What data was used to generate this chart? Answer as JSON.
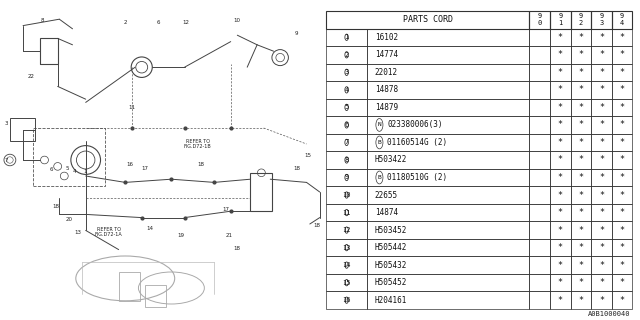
{
  "fig_id": "A0B1000040",
  "table": {
    "header_col1": "PARTS CORD",
    "header_years": [
      "9\n0",
      "9\n1",
      "9\n2",
      "9\n3",
      "9\n4"
    ],
    "rows": [
      {
        "num": "1",
        "part": "16102",
        "prefix": "",
        "suffix": "",
        "stars": [
          " ",
          "*",
          "*",
          "*",
          "*"
        ]
      },
      {
        "num": "2",
        "part": "14774",
        "prefix": "",
        "suffix": "",
        "stars": [
          " ",
          "*",
          "*",
          "*",
          "*"
        ]
      },
      {
        "num": "3",
        "part": "22012",
        "prefix": "",
        "suffix": "",
        "stars": [
          " ",
          "*",
          "*",
          "*",
          "*"
        ]
      },
      {
        "num": "4",
        "part": "14878",
        "prefix": "",
        "suffix": "",
        "stars": [
          " ",
          "*",
          "*",
          "*",
          "*"
        ]
      },
      {
        "num": "5",
        "part": "14879",
        "prefix": "",
        "suffix": "",
        "stars": [
          " ",
          "*",
          "*",
          "*",
          "*"
        ]
      },
      {
        "num": "6",
        "part": "023380006(3)",
        "prefix": "N",
        "suffix": "",
        "stars": [
          " ",
          "*",
          "*",
          "*",
          "*"
        ]
      },
      {
        "num": "7",
        "part": "01160514G (2)",
        "prefix": "B",
        "suffix": "",
        "stars": [
          " ",
          "*",
          "*",
          "*",
          "*"
        ]
      },
      {
        "num": "8",
        "part": "H503422",
        "prefix": "",
        "suffix": "",
        "stars": [
          " ",
          "*",
          "*",
          "*",
          "*"
        ]
      },
      {
        "num": "9",
        "part": "01180510G (2)",
        "prefix": "B",
        "suffix": "",
        "stars": [
          " ",
          "*",
          "*",
          "*",
          "*"
        ]
      },
      {
        "num": "10",
        "part": "22655",
        "prefix": "",
        "suffix": "",
        "stars": [
          " ",
          "*",
          "*",
          "*",
          "*"
        ]
      },
      {
        "num": "11",
        "part": "14874",
        "prefix": "",
        "suffix": "",
        "stars": [
          " ",
          "*",
          "*",
          "*",
          "*"
        ]
      },
      {
        "num": "12",
        "part": "H503452",
        "prefix": "",
        "suffix": "",
        "stars": [
          " ",
          "*",
          "*",
          "*",
          "*"
        ]
      },
      {
        "num": "13",
        "part": "H505442",
        "prefix": "",
        "suffix": "",
        "stars": [
          " ",
          "*",
          "*",
          "*",
          "*"
        ]
      },
      {
        "num": "14",
        "part": "H505432",
        "prefix": "",
        "suffix": "",
        "stars": [
          " ",
          "*",
          "*",
          "*",
          "*"
        ]
      },
      {
        "num": "15",
        "part": "H505452",
        "prefix": "",
        "suffix": "",
        "stars": [
          " ",
          "*",
          "*",
          "*",
          "*"
        ]
      },
      {
        "num": "16",
        "part": "H204161",
        "prefix": "",
        "suffix": "",
        "stars": [
          " ",
          "*",
          "*",
          "*",
          "*"
        ]
      }
    ]
  },
  "bg_color": "#ffffff",
  "diagram_bg": "#f0f0f0"
}
